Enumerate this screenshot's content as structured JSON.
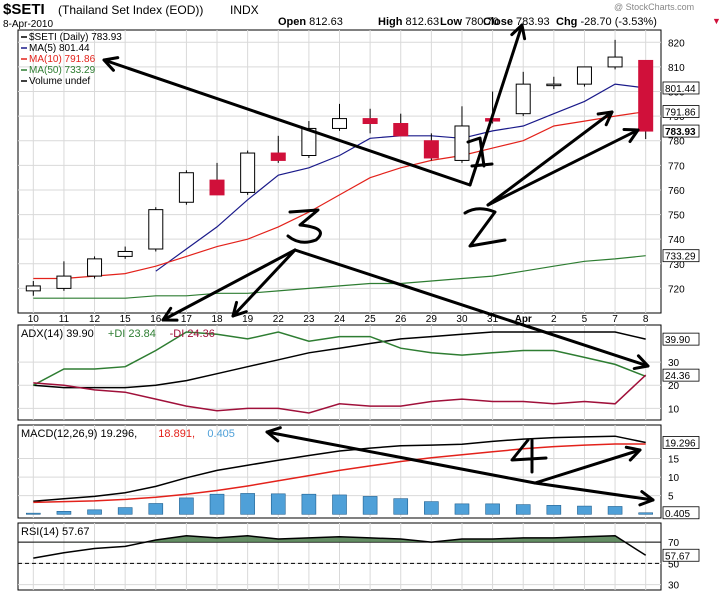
{
  "header": {
    "symbol": "$SETI",
    "name": "(Thailand Set Index (EOD))",
    "exchange": "INDX",
    "date": "8-Apr-2010",
    "watermark": "@ StockCharts.com",
    "ohlc": [
      {
        "label": "Open",
        "value": "812.63"
      },
      {
        "label": "High",
        "value": "812.63"
      },
      {
        "label": "Low",
        "value": "780.70"
      },
      {
        "label": "Close",
        "value": "783.93"
      },
      {
        "label": "Chg",
        "value": "-28.70 (-3.53%)"
      }
    ],
    "chg_arrow": "▼"
  },
  "colors": {
    "up": "#ffffff",
    "down": "#d0103a",
    "ma5": "#1a1a8a",
    "ma10": "#e3221b",
    "ma50": "#2e7d32",
    "adx": "#000000",
    "plus_di": "#2e7d32",
    "minus_di": "#a0103a",
    "macd": "#000000",
    "signal": "#e3221b",
    "hist": "#4fa0d8",
    "rsi_fill": "#4a7a4a",
    "grid": "#d9d9d9",
    "annot": "#000000",
    "panel_bg": "#ffffff"
  },
  "chart_data": [
    {
      "type": "candlestick",
      "legend": [
        {
          "text": "$SETI (Daily) 783.93",
          "color_key": "adx"
        },
        {
          "text": "MA(5) 801.44",
          "color_key": "ma5"
        },
        {
          "text": "MA(10) 791.86",
          "color_key": "ma10"
        },
        {
          "text": "MA(50) 733.29",
          "color_key": "ma50"
        },
        {
          "text": "Volume undef",
          "color_key": "adx"
        }
      ],
      "x_ticks": [
        "10",
        "11",
        "12",
        "15",
        "16",
        "17",
        "18",
        "19",
        "22",
        "23",
        "24",
        "25",
        "26",
        "29",
        "30",
        "31",
        "Apr",
        "2",
        "5",
        "7",
        "8"
      ],
      "ylim": [
        710,
        825
      ],
      "y_ticks": [
        720,
        730,
        740,
        750,
        760,
        770,
        780,
        790,
        800,
        810,
        820
      ],
      "candles": [
        {
          "o": 719,
          "h": 723,
          "l": 717,
          "c": 721
        },
        {
          "o": 720,
          "h": 731,
          "l": 719,
          "c": 725
        },
        {
          "o": 725,
          "h": 733,
          "l": 724,
          "c": 732
        },
        {
          "o": 733,
          "h": 737,
          "l": 732,
          "c": 735
        },
        {
          "o": 736,
          "h": 753,
          "l": 735,
          "c": 752
        },
        {
          "o": 755,
          "h": 768,
          "l": 754,
          "c": 767
        },
        {
          "o": 764,
          "h": 771,
          "l": 758,
          "c": 758
        },
        {
          "o": 759,
          "h": 776,
          "l": 758,
          "c": 775
        },
        {
          "o": 775,
          "h": 782,
          "l": 771,
          "c": 772
        },
        {
          "o": 774,
          "h": 788,
          "l": 773,
          "c": 785
        },
        {
          "o": 785,
          "h": 795,
          "l": 784,
          "c": 789
        },
        {
          "o": 789,
          "h": 793,
          "l": 783,
          "c": 787
        },
        {
          "o": 787,
          "h": 791,
          "l": 782,
          "c": 782
        },
        {
          "o": 780,
          "h": 783,
          "l": 772,
          "c": 773
        },
        {
          "o": 772,
          "h": 794,
          "l": 771,
          "c": 786
        },
        {
          "o": 789,
          "h": 800,
          "l": 787,
          "c": 788
        },
        {
          "o": 791,
          "h": 808,
          "l": 790,
          "c": 803
        },
        {
          "o": 803,
          "h": 806,
          "l": 801,
          "c": 803
        },
        {
          "o": 803,
          "h": 810,
          "l": 802,
          "c": 810
        },
        {
          "o": 810,
          "h": 821,
          "l": 809,
          "c": 814
        },
        {
          "o": 812.63,
          "h": 812.63,
          "l": 780.7,
          "c": 783.93
        }
      ],
      "series": [
        {
          "name": "MA(5)",
          "color_key": "ma5",
          "values": [
            null,
            null,
            null,
            null,
            727,
            736,
            745,
            756,
            766,
            769,
            774,
            781,
            782,
            782,
            781,
            784,
            786,
            791,
            796,
            803,
            801.44
          ]
        },
        {
          "name": "MA(10)",
          "color_key": "ma10",
          "values": [
            724,
            724,
            725,
            726,
            729,
            733,
            737,
            740,
            745,
            751,
            758,
            765,
            769,
            772,
            774,
            777,
            780,
            786,
            788,
            790,
            791.86
          ]
        },
        {
          "name": "MA(50)",
          "color_key": "ma50",
          "values": [
            716,
            716,
            716,
            716,
            717,
            717,
            718,
            718,
            719,
            720,
            721,
            722,
            722,
            723,
            724,
            725,
            727,
            729,
            731,
            732,
            733.29
          ]
        }
      ],
      "last_labels": [
        {
          "text": "801.44",
          "value": 801.44,
          "bold": false
        },
        {
          "text": "791.86",
          "value": 791.86,
          "bold": false
        },
        {
          "text": "783.93",
          "value": 783.93,
          "bold": true
        },
        {
          "text": "733.29",
          "value": 733.29,
          "bold": false
        }
      ]
    },
    {
      "type": "line",
      "legend": [
        {
          "text": "ADX(14) 39.90",
          "color_key": "adx"
        },
        {
          "text": "+DI 23.84",
          "color_key": "plus_di"
        },
        {
          "text": "-DI 24.36",
          "color_key": "minus_di"
        }
      ],
      "ylim": [
        5,
        46
      ],
      "y_ticks": [
        10,
        20,
        30
      ],
      "series": [
        {
          "name": "ADX",
          "color_key": "adx",
          "values": [
            20,
            19,
            19,
            19,
            20,
            22,
            25,
            28,
            31,
            34,
            36,
            38,
            40,
            41,
            42,
            43,
            43,
            43,
            43,
            43,
            39.9
          ]
        },
        {
          "name": "+DI",
          "color_key": "plus_di",
          "values": [
            20,
            27,
            27,
            28,
            35,
            43,
            42,
            40,
            43,
            39,
            41,
            41,
            36,
            34,
            33,
            34,
            35,
            35,
            32,
            29,
            23.84
          ]
        },
        {
          "name": "-DI",
          "color_key": "minus_di",
          "values": [
            21,
            20,
            18,
            17,
            14,
            11,
            9,
            10,
            10,
            8,
            12,
            11,
            11,
            13,
            14,
            13,
            13,
            12,
            13,
            12,
            24.36
          ]
        }
      ],
      "last_labels": [
        {
          "text": "39.90",
          "value": 39.9,
          "bold": false
        },
        {
          "text": "24.36",
          "value": 24.36,
          "bold": false
        }
      ]
    },
    {
      "type": "bar",
      "legend": [
        {
          "text": "MACD(12,26,9) 19.296,",
          "color_key": "macd"
        },
        {
          "text": "18.891,",
          "color_key": "signal"
        },
        {
          "text": "0.405",
          "color_key": "hist"
        }
      ],
      "ylim": [
        -1,
        24
      ],
      "y_ticks": [
        5,
        10,
        15
      ],
      "series": [
        {
          "name": "MACD",
          "color_key": "macd",
          "values": [
            3.5,
            4.2,
            4.8,
            5.8,
            7.5,
            9.8,
            11.8,
            13.2,
            14.5,
            15.8,
            17,
            17.8,
            18.4,
            18.6,
            18.8,
            19.6,
            20.2,
            20.6,
            20.8,
            21,
            19.296
          ]
        },
        {
          "name": "Signal",
          "color_key": "signal",
          "values": [
            3.2,
            3.4,
            3.6,
            4.0,
            4.6,
            5.4,
            6.4,
            7.6,
            9.0,
            10.4,
            11.8,
            13.0,
            14.2,
            15.2,
            16.0,
            16.8,
            17.6,
            18.2,
            18.6,
            18.9,
            18.891
          ]
        },
        {
          "name": "Histogram",
          "color_key": "hist",
          "values": [
            0.3,
            0.8,
            1.2,
            1.8,
            2.9,
            4.4,
            5.4,
            5.6,
            5.5,
            5.4,
            5.2,
            4.8,
            4.2,
            3.4,
            2.8,
            2.8,
            2.6,
            2.4,
            2.2,
            2.1,
            0.405
          ]
        }
      ],
      "last_labels": [
        {
          "text": "19.296",
          "value": 19.296,
          "bold": false
        },
        {
          "text": "0.405",
          "value": 0.405,
          "bold": false
        }
      ]
    },
    {
      "type": "area",
      "legend": [
        {
          "text": "RSI(14) 57.67",
          "color_key": "adx"
        }
      ],
      "ylim": [
        25,
        88
      ],
      "y_ticks": [
        30,
        50,
        70
      ],
      "series": [
        {
          "name": "RSI",
          "color_key": "adx",
          "values": [
            55,
            60,
            64,
            66,
            72,
            76,
            74,
            76,
            73,
            74,
            75,
            74,
            73,
            70,
            73,
            73,
            74,
            74,
            75,
            76,
            57.67
          ]
        }
      ],
      "last_labels": [
        {
          "text": "57.67",
          "value": 57.67,
          "bold": false
        }
      ]
    }
  ],
  "annotations": [
    "1",
    "2",
    "3",
    "4"
  ]
}
